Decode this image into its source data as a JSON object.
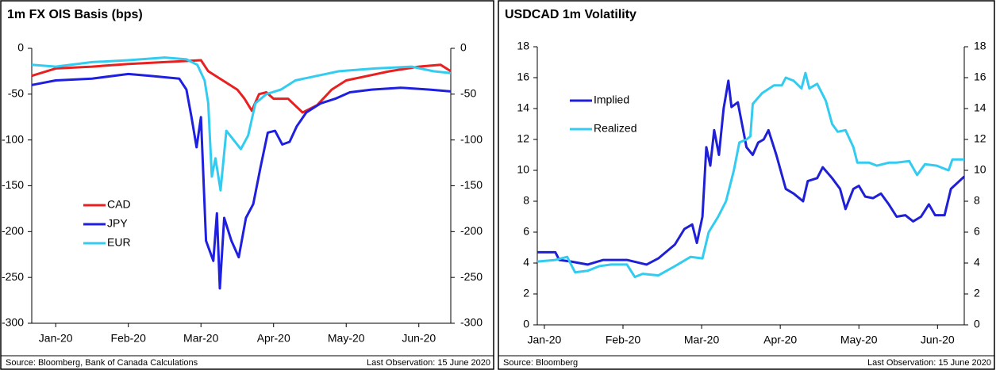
{
  "chart_data": [
    {
      "type": "line",
      "title": "1m FX OIS Basis (bps)",
      "source": "Source: Bloomberg, Bank of Canada Calculations",
      "note": "Last Observation: 15 June 2020",
      "xlim": [
        -0.33,
        5.44
      ],
      "xticks": [
        {
          "value": 0,
          "label": "Jan-20"
        },
        {
          "value": 1,
          "label": "Feb-20"
        },
        {
          "value": 2,
          "label": "Mar-20"
        },
        {
          "value": 3,
          "label": "Apr-20"
        },
        {
          "value": 4,
          "label": "May-20"
        },
        {
          "value": 5,
          "label": "Jun-20"
        }
      ],
      "ylim": [
        -300,
        0
      ],
      "yticks": [
        0,
        -50,
        -100,
        -150,
        -200,
        -250,
        -300
      ],
      "y2lim": [
        -300,
        0
      ],
      "y2ticks": [
        0,
        -50,
        -100,
        -150,
        -200,
        -250,
        -300
      ],
      "legend": "lower left",
      "series": [
        {
          "name": "CAD",
          "color": "#e8201f",
          "x": [
            -0.33,
            0,
            0.5,
            1,
            1.5,
            2,
            2.1,
            2.3,
            2.5,
            2.6,
            2.7,
            2.8,
            2.9,
            3.0,
            3.2,
            3.4,
            3.6,
            3.8,
            4,
            4.3,
            4.6,
            5,
            5.3,
            5.44
          ],
          "values": [
            -30,
            -22,
            -20,
            -17,
            -15,
            -13,
            -25,
            -35,
            -45,
            -55,
            -68,
            -50,
            -48,
            -55,
            -55,
            -70,
            -62,
            -45,
            -35,
            -30,
            -25,
            -20,
            -18,
            -25
          ]
        },
        {
          "name": "JPY",
          "color": "#1f1fe0",
          "x": [
            -0.33,
            0,
            0.5,
            1,
            1.3,
            1.7,
            1.8,
            1.87,
            1.94,
            2.0,
            2.07,
            2.17,
            2.22,
            2.26,
            2.32,
            2.42,
            2.52,
            2.62,
            2.72,
            2.82,
            2.92,
            3.02,
            3.12,
            3.22,
            3.32,
            3.45,
            3.65,
            3.85,
            4.05,
            4.35,
            4.75,
            5.15,
            5.44
          ],
          "values": [
            -40,
            -35,
            -33,
            -28,
            -30,
            -33,
            -45,
            -75,
            -108,
            -75,
            -210,
            -232,
            -180,
            -262,
            -185,
            -210,
            -228,
            -185,
            -170,
            -130,
            -92,
            -90,
            -105,
            -102,
            -85,
            -70,
            -60,
            -55,
            -48,
            -45,
            -43,
            -45,
            -47
          ]
        },
        {
          "name": "EUR",
          "color": "#33ccf0",
          "x": [
            -0.33,
            0,
            0.5,
            1,
            1.5,
            1.8,
            1.95,
            2.05,
            2.1,
            2.15,
            2.2,
            2.27,
            2.35,
            2.45,
            2.55,
            2.65,
            2.75,
            2.9,
            3.1,
            3.3,
            3.6,
            3.9,
            4.4,
            4.9,
            5.2,
            5.44
          ],
          "values": [
            -18,
            -20,
            -15,
            -13,
            -10,
            -12,
            -18,
            -35,
            -60,
            -140,
            -120,
            -155,
            -90,
            -100,
            -110,
            -95,
            -60,
            -50,
            -45,
            -35,
            -30,
            -25,
            -22,
            -20,
            -25,
            -27
          ]
        }
      ]
    },
    {
      "type": "line",
      "title": "USDCAD 1m Volatility",
      "source": "Source: Bloomberg",
      "note": "Last Observation: 15 June 2020",
      "xlim": [
        -0.09,
        5.34
      ],
      "xticks": [
        {
          "value": 0,
          "label": "Jan-20"
        },
        {
          "value": 1,
          "label": "Feb-20"
        },
        {
          "value": 2,
          "label": "Mar-20"
        },
        {
          "value": 3,
          "label": "Apr-20"
        },
        {
          "value": 4,
          "label": "May-20"
        },
        {
          "value": 5,
          "label": "Jun-20"
        }
      ],
      "ylim": [
        0,
        18
      ],
      "yticks": [
        0,
        2,
        4,
        6,
        8,
        10,
        12,
        14,
        16,
        18
      ],
      "y2lim": [
        0,
        18
      ],
      "y2ticks": [
        0,
        2,
        4,
        6,
        8,
        10,
        12,
        14,
        16,
        18
      ],
      "legend": "upper left",
      "series": [
        {
          "name": "Implied",
          "color": "#1f1fd6",
          "x": [
            -0.09,
            0.14,
            0.19,
            0.34,
            0.55,
            0.75,
            1.05,
            1.3,
            1.45,
            1.66,
            1.78,
            1.88,
            1.94,
            2.01,
            2.06,
            2.11,
            2.16,
            2.22,
            2.28,
            2.34,
            2.38,
            2.46,
            2.57,
            2.65,
            2.72,
            2.79,
            2.85,
            2.95,
            3.07,
            3.17,
            3.29,
            3.35,
            3.47,
            3.54,
            3.66,
            3.76,
            3.83,
            3.93,
            4.0,
            4.08,
            4.18,
            4.28,
            4.38,
            4.48,
            4.59,
            4.69,
            4.79,
            4.89,
            4.97,
            5.09,
            5.17,
            5.34
          ],
          "values": [
            4.7,
            4.7,
            4.2,
            4.1,
            3.9,
            4.2,
            4.2,
            3.9,
            4.3,
            5.2,
            6.2,
            6.5,
            5.3,
            7,
            11.5,
            10.3,
            12.6,
            11,
            14,
            15.8,
            14.1,
            14.4,
            11.5,
            11,
            11.8,
            12,
            12.6,
            11,
            8.8,
            8.5,
            8,
            9.3,
            9.5,
            10.2,
            9.5,
            8.8,
            7.5,
            8.8,
            9,
            8.3,
            8.2,
            8.5,
            7.8,
            7,
            7.1,
            6.7,
            7,
            7.8,
            7.1,
            7.1,
            8.8,
            9.6
          ]
        },
        {
          "name": "Realized",
          "color": "#33ccf0",
          "x": [
            -0.09,
            0.14,
            0.29,
            0.39,
            0.55,
            0.7,
            0.85,
            1.05,
            1.15,
            1.25,
            1.45,
            1.66,
            1.86,
            2.01,
            2.09,
            2.21,
            2.31,
            2.41,
            2.48,
            2.57,
            2.62,
            2.65,
            2.77,
            2.92,
            3.02,
            3.07,
            3.17,
            3.27,
            3.32,
            3.37,
            3.47,
            3.58,
            3.66,
            3.73,
            3.83,
            3.93,
            3.98,
            4.13,
            4.23,
            4.38,
            4.48,
            4.64,
            4.74,
            4.84,
            4.99,
            5.14,
            5.19,
            5.34
          ],
          "values": [
            4.1,
            4.2,
            4.4,
            3.4,
            3.5,
            3.8,
            3.9,
            3.9,
            3.1,
            3.3,
            3.2,
            3.8,
            4.4,
            4.3,
            6,
            7,
            8,
            10,
            11.8,
            12,
            12.2,
            14.3,
            15,
            15.5,
            15.5,
            16,
            15.8,
            15.3,
            16.3,
            15.3,
            15.6,
            14.5,
            13,
            12.5,
            12.6,
            11.5,
            10.5,
            10.5,
            10.3,
            10.5,
            10.5,
            10.6,
            9.7,
            10.4,
            10.3,
            10,
            10.7,
            10.7
          ]
        }
      ]
    }
  ]
}
